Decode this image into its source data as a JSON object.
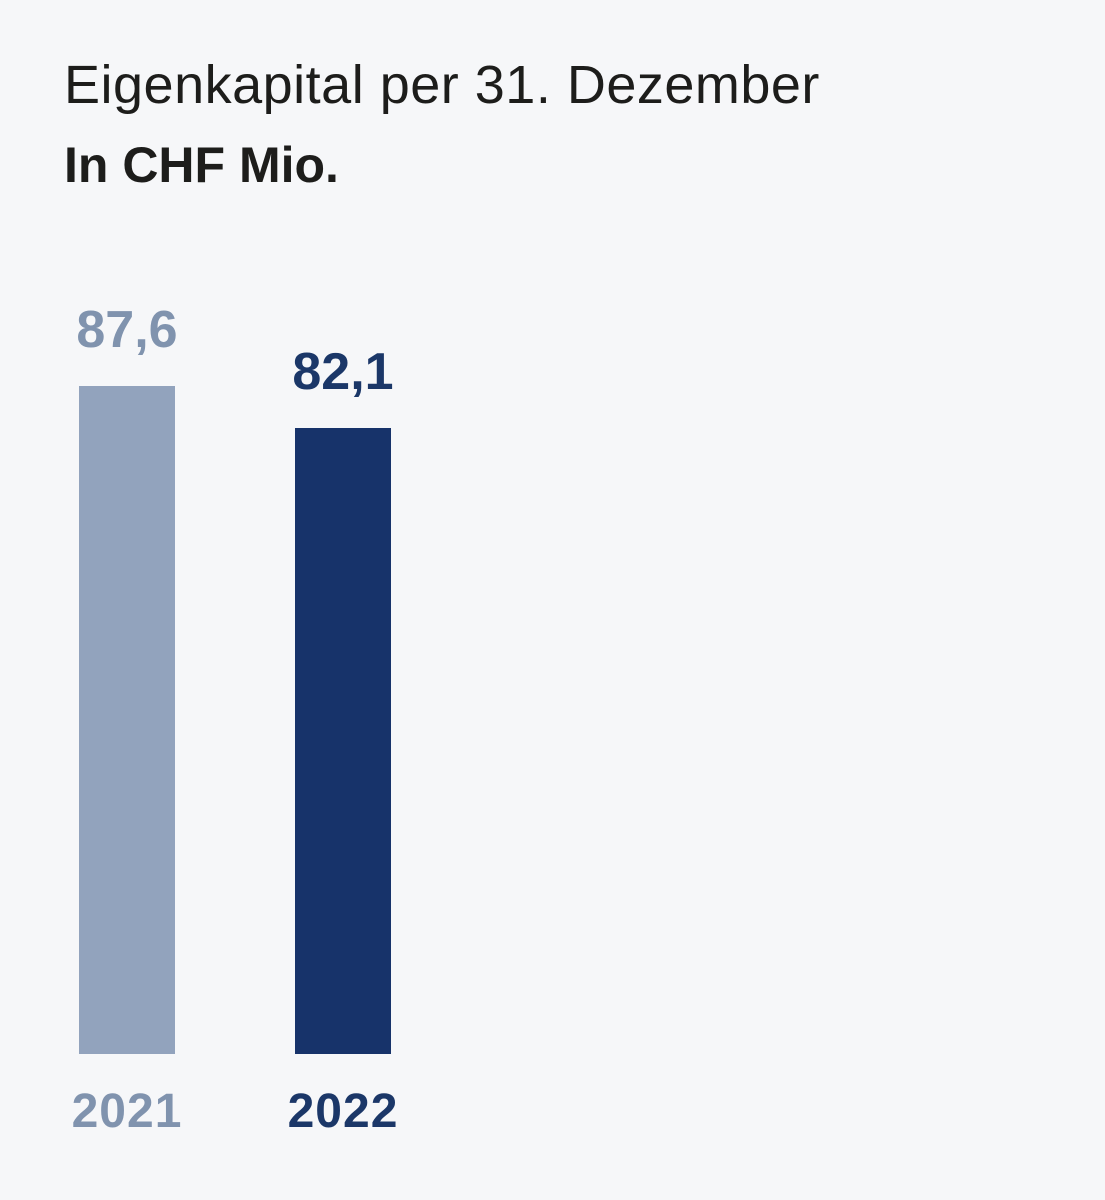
{
  "header": {
    "title": "Eigenkapital per 31. Dezember",
    "subtitle": "In CHF Mio."
  },
  "colors": {
    "background": "#f6f7f9",
    "title_text": "#1d1d1b",
    "bar_2021": "#92a3bd",
    "bar_2022": "#17336a",
    "label_2021": "#8093ae",
    "label_2022": "#1b3768"
  },
  "chart_data": {
    "type": "bar",
    "title": "Eigenkapital per 31. Dezember",
    "subtitle": "In CHF Mio.",
    "unit": "CHF Mio.",
    "categories": [
      "2021",
      "2022"
    ],
    "values": [
      87.6,
      82.1
    ],
    "value_labels": [
      "87,6",
      "82,1"
    ],
    "bar_colors": [
      "#92a3bd",
      "#17336a"
    ],
    "text_colors": [
      "#8093ae",
      "#1b3768"
    ],
    "ylim": [
      0,
      90
    ],
    "grid": false,
    "legend": false,
    "axes_visible": false
  }
}
